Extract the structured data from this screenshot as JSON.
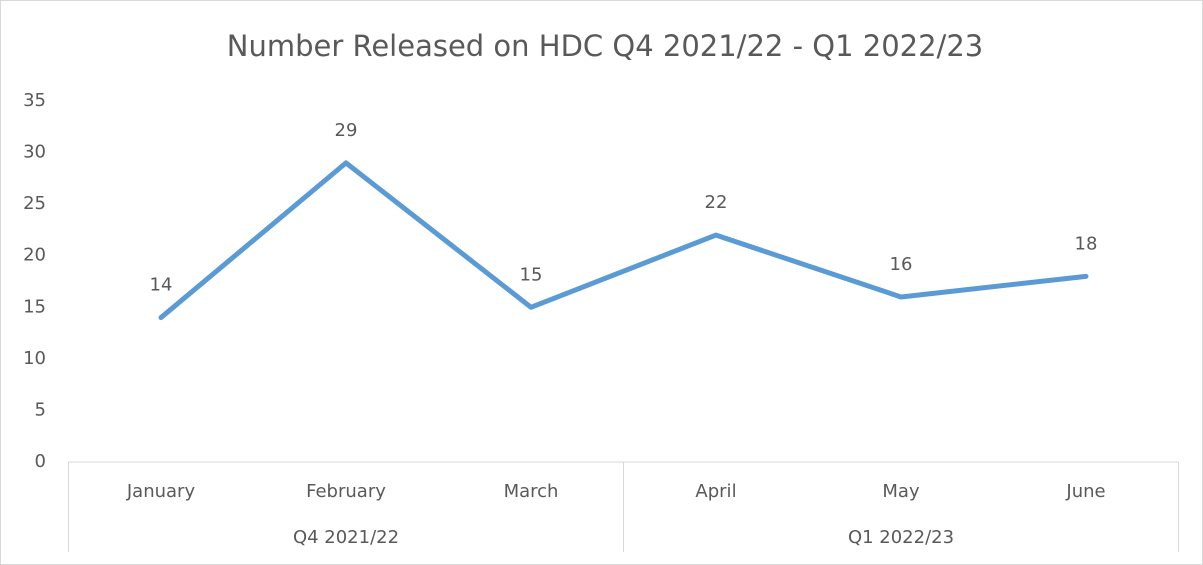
{
  "chart_data": {
    "type": "line",
    "title": "Number Released on HDC Q4 2021/22 - Q1 2022/23",
    "categories": [
      "January",
      "February",
      "March",
      "April",
      "May",
      "June"
    ],
    "groups": [
      {
        "name": "Q4 2021/22",
        "size": 3
      },
      {
        "name": "Q1 2022/23",
        "size": 3
      }
    ],
    "values": [
      14,
      29,
      15,
      22,
      16,
      18
    ],
    "color": "#5b9bd5",
    "ylim": [
      0,
      35
    ],
    "yticks": [
      0,
      5,
      10,
      15,
      20,
      25,
      30,
      35
    ],
    "grid": false,
    "data_labels": true
  }
}
